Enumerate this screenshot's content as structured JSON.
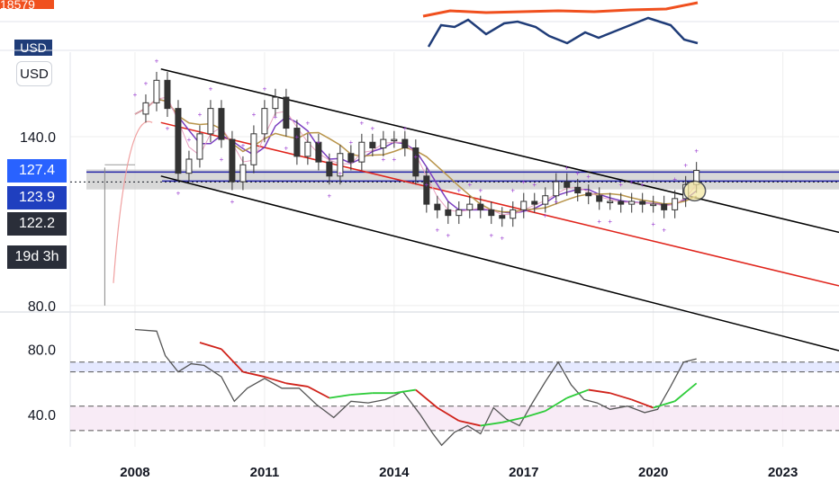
{
  "currency_button": "USD",
  "mini_panels": [
    {
      "label": "18579",
      "sub_label": "USD",
      "color": "#f0501e"
    },
    {
      "label": "USD",
      "sub_label": "",
      "color": "#1f3c78"
    }
  ],
  "price_tags": [
    {
      "text": "127.4",
      "color": "#2962ff"
    },
    {
      "text": "123.9",
      "color": "#1f3fbf"
    },
    {
      "text": "122.2",
      "color": "#2a2e39"
    },
    {
      "text": "19d 3h",
      "color": "#2a2e39"
    }
  ],
  "colors": {
    "channel": "#000000",
    "midline": "#e0241b",
    "rsi_line": "#555555",
    "rsi_ma_down": "#d0231b",
    "rsi_ma_up": "#2ecc3a",
    "resistance_band": "#c8c8c8",
    "resistance_line": "#2323a8",
    "sar": "#9b3fd0",
    "candle": "#333333"
  },
  "chart_data": [
    {
      "type": "candlestick",
      "title": "",
      "x_ticks": [
        "2008",
        "2011",
        "2014",
        "2017",
        "2020",
        "2023"
      ],
      "xlim": [
        2006.5,
        2024.3
      ],
      "y_ticks": [
        140.0,
        80.0
      ],
      "y_tick_labels": [
        "140.0",
        "80.0"
      ],
      "ylim": [
        79.0,
        170.0
      ],
      "grid": true,
      "levels": {
        "price_resistance": 127.4,
        "price_current": 123.9,
        "price_low": 122.2
      },
      "series": [
        {
          "kind": "close",
          "x": [
            2008.0,
            2008.25,
            2008.5,
            2008.75,
            2009.0,
            2009.25,
            2009.5,
            2009.75,
            2010.0,
            2010.25,
            2010.5,
            2010.75,
            2011.0,
            2011.25,
            2011.5,
            2011.75,
            2012.0,
            2012.25,
            2012.5,
            2012.75,
            2013.0,
            2013.25,
            2013.5,
            2013.75,
            2014.0,
            2014.25,
            2014.5,
            2014.75,
            2015.0,
            2015.25,
            2015.5,
            2015.75,
            2016.0,
            2016.25,
            2016.5,
            2016.75,
            2017.0,
            2017.25,
            2017.5,
            2017.75,
            2018.0,
            2018.25,
            2018.5,
            2018.75,
            2019.0,
            2019.25,
            2019.5,
            2019.75,
            2020.0,
            2020.25,
            2020.5,
            2020.75,
            2021.0
          ],
          "values": [
            148,
            152,
            160,
            150,
            127,
            132,
            141,
            150,
            139,
            124,
            130,
            141,
            150,
            154,
            143,
            133,
            138,
            131,
            126,
            134,
            131,
            138,
            136,
            139,
            139,
            136,
            126,
            116,
            114,
            112,
            114,
            116,
            114,
            112,
            111,
            114,
            117,
            116,
            119,
            124,
            122,
            120,
            119,
            117,
            117,
            116,
            117,
            116,
            116,
            114,
            118,
            123,
            128
          ]
        }
      ],
      "channel": {
        "upper": [
          [
            2008.6,
            164
          ],
          [
            2024.3,
            106
          ]
        ],
        "lower": [
          [
            2008.6,
            126
          ],
          [
            2024.3,
            64
          ]
        ],
        "mid": [
          [
            2008.6,
            145
          ],
          [
            2024.3,
            87
          ]
        ]
      }
    },
    {
      "type": "line",
      "title": "",
      "y_ticks": [
        80.0,
        40.0
      ],
      "y_tick_labels": [
        "80.0",
        "40.0"
      ],
      "ylim": [
        20,
        100
      ],
      "bands": [
        [
          66,
          72
        ],
        [
          30,
          45
        ]
      ],
      "series": [
        {
          "kind": "rsi",
          "x": [
            2008.0,
            2008.5,
            2008.7,
            2009.0,
            2009.3,
            2009.6,
            2010.0,
            2010.3,
            2010.6,
            2011.0,
            2011.4,
            2011.8,
            2012.2,
            2012.6,
            2013.0,
            2013.4,
            2013.8,
            2014.2,
            2014.6,
            2014.9,
            2015.1,
            2015.4,
            2015.7,
            2016.0,
            2016.3,
            2016.6,
            2016.9,
            2017.2,
            2017.5,
            2017.8,
            2018.1,
            2018.4,
            2018.7,
            2019.0,
            2019.4,
            2019.8,
            2020.1,
            2020.4,
            2020.7,
            2021.0
          ],
          "values": [
            92,
            91,
            76,
            66,
            71,
            70,
            63,
            48,
            56,
            62,
            56,
            56,
            46,
            38,
            48,
            47,
            49,
            54,
            40,
            28,
            21,
            29,
            33,
            28,
            44,
            37,
            33,
            47,
            60,
            72,
            58,
            49,
            47,
            43,
            45,
            41,
            43,
            57,
            72,
            74
          ]
        },
        {
          "kind": "rsi_ma",
          "x": [
            2009.5,
            2010.0,
            2010.5,
            2011.0,
            2011.5,
            2012.0,
            2012.5,
            2013.0,
            2013.5,
            2014.0,
            2014.5,
            2015.0,
            2015.5,
            2016.0,
            2016.5,
            2017.0,
            2017.5,
            2018.0,
            2018.5,
            2019.0,
            2019.5,
            2020.0,
            2020.5,
            2021.0
          ],
          "values": [
            84,
            80,
            66,
            63,
            59,
            57,
            50,
            52,
            53,
            53,
            55,
            44,
            36,
            33,
            35,
            38,
            42,
            50,
            55,
            53,
            49,
            44,
            48,
            59
          ]
        }
      ]
    }
  ]
}
